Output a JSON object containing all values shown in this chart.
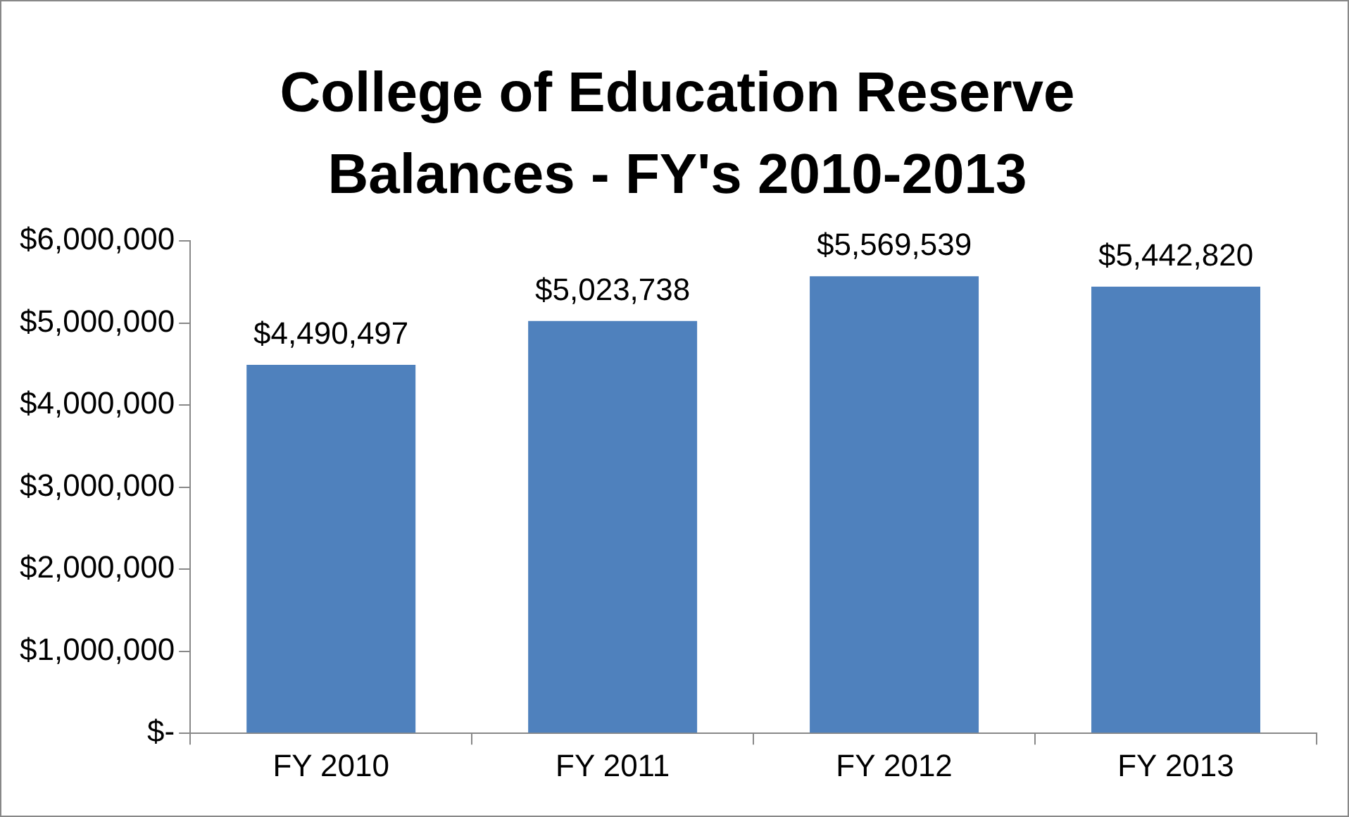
{
  "chart_data": {
    "type": "bar",
    "title": "College of Education Reserve Balances - FY's 2010-2013",
    "categories": [
      "FY 2010",
      "FY 2011",
      "FY 2012",
      "FY 2013"
    ],
    "values": [
      4490497,
      5023738,
      5569539,
      5442820
    ],
    "value_labels": [
      "$4,490,497",
      "$5,023,738",
      "$5,569,539",
      "$5,442,820"
    ],
    "color": "#4f81bd",
    "ylim": [
      0,
      6000000
    ],
    "yticks": [
      {
        "value": 0,
        "label": "$-"
      },
      {
        "value": 1000000,
        "label": "$1,000,000"
      },
      {
        "value": 2000000,
        "label": "$2,000,000"
      },
      {
        "value": 3000000,
        "label": "$3,000,000"
      },
      {
        "value": 4000000,
        "label": "$4,000,000"
      },
      {
        "value": 5000000,
        "label": "$5,000,000"
      },
      {
        "value": 6000000,
        "label": "$6,000,000"
      }
    ],
    "grid": false,
    "legend": false
  }
}
